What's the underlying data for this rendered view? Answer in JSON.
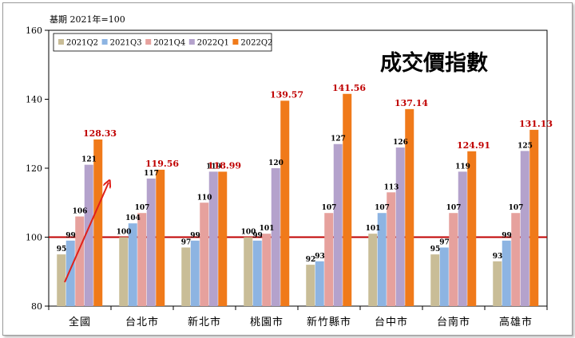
{
  "chart_data": {
    "type": "bar",
    "title": "成交價指數",
    "base_note": "基期 2021年=100",
    "ylim": [
      80,
      160
    ],
    "yticks": [
      80,
      100,
      120,
      140,
      160
    ],
    "reference_line": 100,
    "legend_position": "top-left",
    "categories": [
      "全國",
      "台北市",
      "新北市",
      "桃園市",
      "新竹縣市",
      "台中市",
      "台南市",
      "高雄市"
    ],
    "series": [
      {
        "name": "2021Q2",
        "color": "#c9bd97",
        "values": [
          95,
          100,
          97,
          100,
          92,
          101,
          95,
          93
        ],
        "labels": [
          "95",
          "100",
          "97",
          "100",
          "92",
          "101",
          "95",
          "93"
        ]
      },
      {
        "name": "2021Q3",
        "color": "#8db4e2",
        "values": [
          99,
          104,
          99,
          99,
          93,
          107,
          97,
          99
        ],
        "labels": [
          "99",
          "104",
          "99",
          "99",
          "93",
          "107",
          "97",
          "99"
        ]
      },
      {
        "name": "2021Q4",
        "color": "#e6a19d",
        "values": [
          106,
          107,
          110,
          101,
          107,
          113,
          107,
          107
        ],
        "labels": [
          "106",
          "107",
          "110",
          "101",
          "107",
          "113",
          "107",
          "107"
        ]
      },
      {
        "name": "2022Q1",
        "color": "#b4a2cc",
        "values": [
          121,
          117,
          119,
          120,
          127,
          126,
          119,
          125
        ],
        "labels": [
          "121",
          "117",
          "119",
          "120",
          "127",
          "126",
          "119",
          "125"
        ]
      },
      {
        "name": "2022Q2",
        "color": "#f07a1a",
        "values": [
          128.33,
          119.56,
          118.99,
          139.57,
          141.56,
          137.14,
          124.91,
          131.13
        ],
        "labels": [
          "128.33",
          "119.56",
          "118.99",
          "139.57",
          "141.56",
          "137.14",
          "124.91",
          "131.13"
        ],
        "highlight": true
      }
    ],
    "colors": {
      "reference_line": "#c00000",
      "highlight_label": "#c00000",
      "arrow": "#e0201a"
    }
  }
}
